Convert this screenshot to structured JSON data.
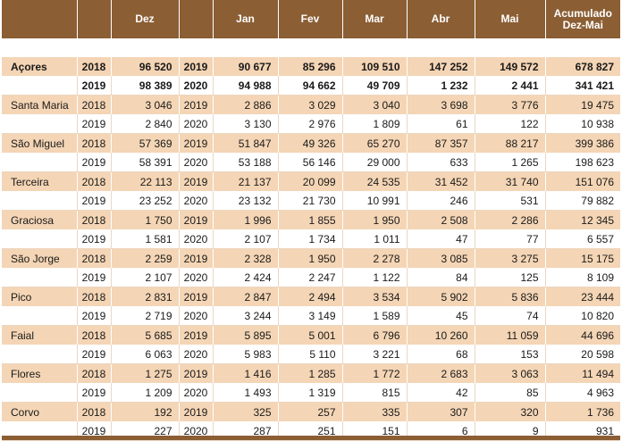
{
  "header": {
    "dez": "Dez",
    "jan": "Jan",
    "fev": "Fev",
    "mar": "Mar",
    "abr": "Abr",
    "mai": "Mai",
    "acum_line1": "Acumulado",
    "acum_line2": "Dez-Mai"
  },
  "rows": [
    {
      "region": "Açores",
      "y1": "2018",
      "dez": "96 520",
      "y2": "2019",
      "jan": "90 677",
      "fev": "85 296",
      "mar": "109 510",
      "abr": "147 252",
      "mai": "149 572",
      "acum": "678 827"
    },
    {
      "region": "",
      "y1": "2019",
      "dez": "98 389",
      "y2": "2020",
      "jan": "94 988",
      "fev": "94 662",
      "mar": "49 709",
      "abr": "1 232",
      "mai": "2 441",
      "acum": "341 421"
    },
    {
      "region": "Santa Maria",
      "y1": "2018",
      "dez": "3 046",
      "y2": "2019",
      "jan": "2 886",
      "fev": "3 029",
      "mar": "3 040",
      "abr": "3 698",
      "mai": "3 776",
      "acum": "19 475"
    },
    {
      "region": "",
      "y1": "2019",
      "dez": "2 840",
      "y2": "2020",
      "jan": "3 130",
      "fev": "2 976",
      "mar": "1 809",
      "abr": "61",
      "mai": "122",
      "acum": "10 938"
    },
    {
      "region": "São Miguel",
      "y1": "2018",
      "dez": "57 369",
      "y2": "2019",
      "jan": "51 847",
      "fev": "49 326",
      "mar": "65 270",
      "abr": "87 357",
      "mai": "88 217",
      "acum": "399 386"
    },
    {
      "region": "",
      "y1": "2019",
      "dez": "58 391",
      "y2": "2020",
      "jan": "53 188",
      "fev": "56 146",
      "mar": "29 000",
      "abr": "633",
      "mai": "1 265",
      "acum": "198 623"
    },
    {
      "region": "Terceira",
      "y1": "2018",
      "dez": "22 113",
      "y2": "2019",
      "jan": "21 137",
      "fev": "20 099",
      "mar": "24 535",
      "abr": "31 452",
      "mai": "31 740",
      "acum": "151 076"
    },
    {
      "region": "",
      "y1": "2019",
      "dez": "23 252",
      "y2": "2020",
      "jan": "23 132",
      "fev": "21 730",
      "mar": "10 991",
      "abr": "246",
      "mai": "531",
      "acum": "79 882"
    },
    {
      "region": "Graciosa",
      "y1": "2018",
      "dez": "1 750",
      "y2": "2019",
      "jan": "1 996",
      "fev": "1 855",
      "mar": "1 950",
      "abr": "2 508",
      "mai": "2 286",
      "acum": "12 345"
    },
    {
      "region": "",
      "y1": "2019",
      "dez": "1 581",
      "y2": "2020",
      "jan": "2 107",
      "fev": "1 734",
      "mar": "1 011",
      "abr": "47",
      "mai": "77",
      "acum": "6 557"
    },
    {
      "region": "São Jorge",
      "y1": "2018",
      "dez": "2 259",
      "y2": "2019",
      "jan": "2 328",
      "fev": "1 950",
      "mar": "2 278",
      "abr": "3 085",
      "mai": "3 275",
      "acum": "15 175"
    },
    {
      "region": "",
      "y1": "2019",
      "dez": "2 107",
      "y2": "2020",
      "jan": "2 424",
      "fev": "2 247",
      "mar": "1 122",
      "abr": "84",
      "mai": "125",
      "acum": "8 109"
    },
    {
      "region": "Pico",
      "y1": "2018",
      "dez": "2 831",
      "y2": "2019",
      "jan": "2 847",
      "fev": "2 494",
      "mar": "3 534",
      "abr": "5 902",
      "mai": "5 836",
      "acum": "23 444"
    },
    {
      "region": "",
      "y1": "2019",
      "dez": "2 719",
      "y2": "2020",
      "jan": "3 244",
      "fev": "3 149",
      "mar": "1 589",
      "abr": "45",
      "mai": "74",
      "acum": "10 820"
    },
    {
      "region": "Faial",
      "y1": "2018",
      "dez": "5 685",
      "y2": "2019",
      "jan": "5 895",
      "fev": "5 001",
      "mar": "6 796",
      "abr": "10 260",
      "mai": "11 059",
      "acum": "44 696"
    },
    {
      "region": "",
      "y1": "2019",
      "dez": "6 063",
      "y2": "2020",
      "jan": "5 983",
      "fev": "5 110",
      "mar": "3 221",
      "abr": "68",
      "mai": "153",
      "acum": "20 598"
    },
    {
      "region": "Flores",
      "y1": "2018",
      "dez": "1 275",
      "y2": "2019",
      "jan": "1 416",
      "fev": "1 285",
      "mar": "1 772",
      "abr": "2 683",
      "mai": "3 063",
      "acum": "11 494"
    },
    {
      "region": "",
      "y1": "2019",
      "dez": "1 209",
      "y2": "2020",
      "jan": "1 493",
      "fev": "1 319",
      "mar": "815",
      "abr": "42",
      "mai": "85",
      "acum": "4 963"
    },
    {
      "region": "Corvo",
      "y1": "2018",
      "dez": "192",
      "y2": "2019",
      "jan": "325",
      "fev": "257",
      "mar": "335",
      "abr": "307",
      "mai": "320",
      "acum": "1 736"
    },
    {
      "region": "",
      "y1": "2019",
      "dez": "227",
      "y2": "2020",
      "jan": "287",
      "fev": "251",
      "mar": "151",
      "abr": "6",
      "mai": "9",
      "acum": "931"
    }
  ],
  "colors": {
    "header_bg": "#8b5e34",
    "row_shaded": "#f4d5b5",
    "row_plain": "#ffffff"
  }
}
